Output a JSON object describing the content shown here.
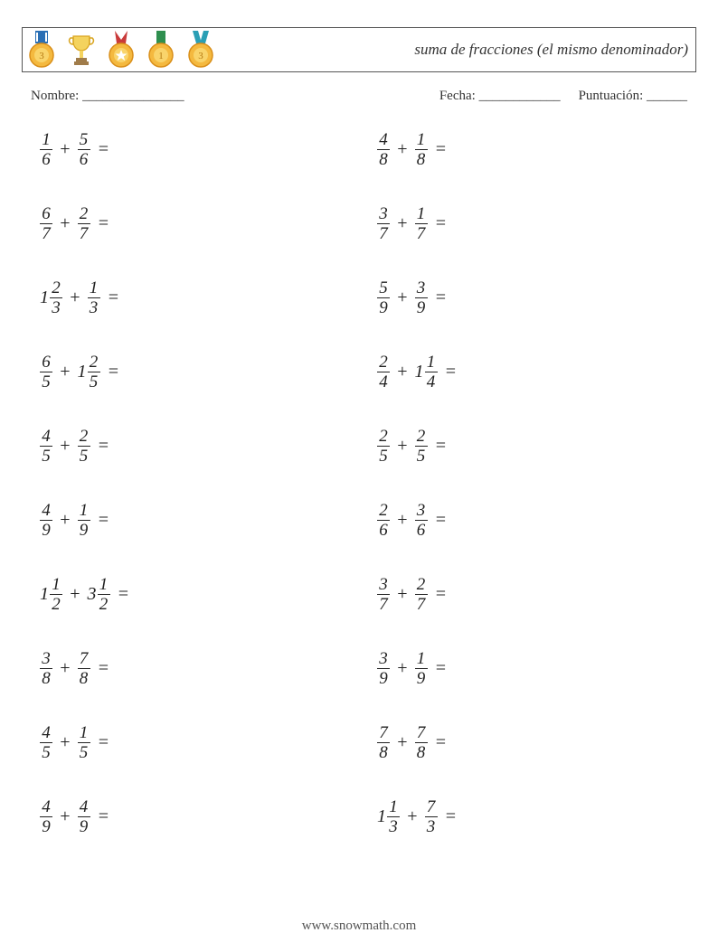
{
  "header": {
    "title": "suma de fracciones (el mismo denominador)"
  },
  "info": {
    "name_label": "Nombre: _______________",
    "date_label": "Fecha: ____________",
    "score_label": "Puntuación: ______"
  },
  "medals": {
    "medal1": {
      "ribbon_fill": "#2a6fb5",
      "disc_fill": "#f4b93f",
      "disc_stroke": "#d98f1a",
      "inner_fill": "#f9d46b",
      "text": "3"
    },
    "trophy": {
      "cup_fill": "#f4d35e",
      "cup_stroke": "#d9a520",
      "base_fill": "#a07c4a"
    },
    "medal2": {
      "ribbon_fill": "#c93a3a",
      "disc_fill": "#f4b93f",
      "disc_stroke": "#d98f1a",
      "inner_fill": "#f9d46b",
      "star": "#fff"
    },
    "medal3": {
      "ribbon_fill": "#2f8f4f",
      "disc_fill": "#f4b93f",
      "disc_stroke": "#d98f1a",
      "inner_fill": "#f9d46b",
      "text": "1"
    },
    "medal4": {
      "ribbon_fill": "#2a9fb5",
      "disc_fill": "#f4b93f",
      "disc_stroke": "#d98f1a",
      "inner_fill": "#f9d46b",
      "text": "3"
    }
  },
  "operator": "+",
  "equals": "=",
  "footer": "www.snowmath.com",
  "problems_left": [
    {
      "a": {
        "w": null,
        "n": "1",
        "d": "6"
      },
      "b": {
        "w": null,
        "n": "5",
        "d": "6"
      }
    },
    {
      "a": {
        "w": null,
        "n": "6",
        "d": "7"
      },
      "b": {
        "w": null,
        "n": "2",
        "d": "7"
      }
    },
    {
      "a": {
        "w": "1",
        "n": "2",
        "d": "3"
      },
      "b": {
        "w": null,
        "n": "1",
        "d": "3"
      }
    },
    {
      "a": {
        "w": null,
        "n": "6",
        "d": "5"
      },
      "b": {
        "w": "1",
        "n": "2",
        "d": "5"
      }
    },
    {
      "a": {
        "w": null,
        "n": "4",
        "d": "5"
      },
      "b": {
        "w": null,
        "n": "2",
        "d": "5"
      }
    },
    {
      "a": {
        "w": null,
        "n": "4",
        "d": "9"
      },
      "b": {
        "w": null,
        "n": "1",
        "d": "9"
      }
    },
    {
      "a": {
        "w": "1",
        "n": "1",
        "d": "2"
      },
      "b": {
        "w": "3",
        "n": "1",
        "d": "2"
      }
    },
    {
      "a": {
        "w": null,
        "n": "3",
        "d": "8"
      },
      "b": {
        "w": null,
        "n": "7",
        "d": "8"
      }
    },
    {
      "a": {
        "w": null,
        "n": "4",
        "d": "5"
      },
      "b": {
        "w": null,
        "n": "1",
        "d": "5"
      }
    },
    {
      "a": {
        "w": null,
        "n": "4",
        "d": "9"
      },
      "b": {
        "w": null,
        "n": "4",
        "d": "9"
      }
    }
  ],
  "problems_right": [
    {
      "a": {
        "w": null,
        "n": "4",
        "d": "8"
      },
      "b": {
        "w": null,
        "n": "1",
        "d": "8"
      }
    },
    {
      "a": {
        "w": null,
        "n": "3",
        "d": "7"
      },
      "b": {
        "w": null,
        "n": "1",
        "d": "7"
      }
    },
    {
      "a": {
        "w": null,
        "n": "5",
        "d": "9"
      },
      "b": {
        "w": null,
        "n": "3",
        "d": "9"
      }
    },
    {
      "a": {
        "w": null,
        "n": "2",
        "d": "4"
      },
      "b": {
        "w": "1",
        "n": "1",
        "d": "4"
      }
    },
    {
      "a": {
        "w": null,
        "n": "2",
        "d": "5"
      },
      "b": {
        "w": null,
        "n": "2",
        "d": "5"
      }
    },
    {
      "a": {
        "w": null,
        "n": "2",
        "d": "6"
      },
      "b": {
        "w": null,
        "n": "3",
        "d": "6"
      }
    },
    {
      "a": {
        "w": null,
        "n": "3",
        "d": "7"
      },
      "b": {
        "w": null,
        "n": "2",
        "d": "7"
      }
    },
    {
      "a": {
        "w": null,
        "n": "3",
        "d": "9"
      },
      "b": {
        "w": null,
        "n": "1",
        "d": "9"
      }
    },
    {
      "a": {
        "w": null,
        "n": "7",
        "d": "8"
      },
      "b": {
        "w": null,
        "n": "7",
        "d": "8"
      }
    },
    {
      "a": {
        "w": "1",
        "n": "1",
        "d": "3"
      },
      "b": {
        "w": null,
        "n": "7",
        "d": "3"
      }
    }
  ]
}
